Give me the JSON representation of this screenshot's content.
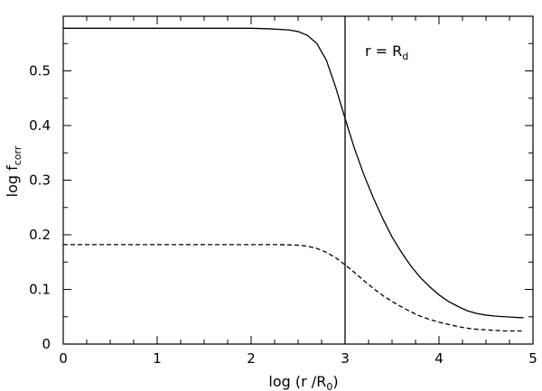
{
  "chart_data": {
    "type": "line",
    "title": "",
    "xlabel": {
      "pre": "log (r /R",
      "sub": "0",
      "post": ")"
    },
    "ylabel": {
      "pre": "log f",
      "sub": "corr"
    },
    "xlim": [
      0,
      5
    ],
    "ylim": [
      0,
      0.6
    ],
    "x_ticks": [
      "0",
      "1",
      "2",
      "3",
      "4",
      "5"
    ],
    "y_ticks": [
      "0",
      "0.1",
      "0.2",
      "0.3",
      "0.4",
      "0.5"
    ],
    "grid": false,
    "series": [
      {
        "style": "solid",
        "x": [
          0.0,
          0.5,
          1.0,
          1.5,
          2.0,
          2.2,
          2.4,
          2.5,
          2.6,
          2.7,
          2.8,
          2.9,
          3.0,
          3.1,
          3.2,
          3.3,
          3.4,
          3.5,
          3.6,
          3.7,
          3.8,
          3.9,
          4.0,
          4.1,
          4.2,
          4.3,
          4.4,
          4.5,
          4.6,
          4.7,
          4.8,
          4.9
        ],
        "y": [
          0.578,
          0.578,
          0.578,
          0.578,
          0.578,
          0.577,
          0.575,
          0.572,
          0.565,
          0.55,
          0.52,
          0.47,
          0.413,
          0.358,
          0.31,
          0.268,
          0.23,
          0.196,
          0.168,
          0.143,
          0.122,
          0.105,
          0.09,
          0.078,
          0.069,
          0.061,
          0.056,
          0.053,
          0.051,
          0.05,
          0.049,
          0.048
        ]
      },
      {
        "style": "dashed",
        "x": [
          0.0,
          0.5,
          1.0,
          1.5,
          2.0,
          2.3,
          2.5,
          2.6,
          2.7,
          2.8,
          2.9,
          3.0,
          3.1,
          3.2,
          3.3,
          3.4,
          3.5,
          3.6,
          3.7,
          3.8,
          3.9,
          4.0,
          4.1,
          4.2,
          4.3,
          4.4,
          4.5,
          4.6,
          4.7,
          4.8,
          4.9
        ],
        "y": [
          0.182,
          0.182,
          0.182,
          0.182,
          0.182,
          0.182,
          0.181,
          0.179,
          0.175,
          0.168,
          0.158,
          0.145,
          0.131,
          0.116,
          0.102,
          0.089,
          0.078,
          0.068,
          0.059,
          0.051,
          0.045,
          0.04,
          0.036,
          0.032,
          0.029,
          0.027,
          0.026,
          0.025,
          0.024,
          0.024,
          0.024
        ]
      }
    ],
    "vline": {
      "x": 3.0,
      "label": {
        "pre": "r = R",
        "sub": "d"
      }
    }
  }
}
